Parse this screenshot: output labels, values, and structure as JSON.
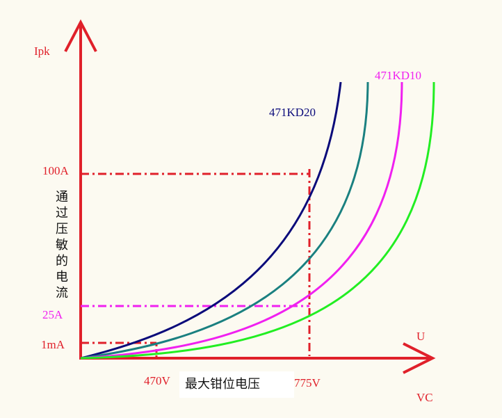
{
  "axes": {
    "y_label": "Ipk",
    "x_label_top": "U",
    "x_label_bottom": "VC",
    "y_title_chars": [
      "通",
      "过",
      "压",
      "敏",
      "的",
      "电",
      "流"
    ],
    "x_title": "最大钳位电压"
  },
  "y_markers": [
    {
      "label": "100A",
      "color": "#e0202a"
    },
    {
      "label": "25A",
      "color": "#f020f0"
    },
    {
      "label": "1mA",
      "color": "#e0202a"
    }
  ],
  "x_markers": [
    {
      "label": "470V",
      "color": "#e0202a"
    },
    {
      "label": "775V",
      "color": "#e0202a"
    }
  ],
  "curves": [
    {
      "label": "471KD20",
      "color": "#0a0a7a"
    },
    {
      "label": "",
      "color": "#1a8080"
    },
    {
      "label": "471KD10",
      "color": "#f020f0"
    },
    {
      "label": "",
      "color": "#22ee22"
    }
  ],
  "colors": {
    "axis": "#e0202a",
    "background": "#fcfaf1",
    "guide_red": "#e0202a",
    "guide_magenta": "#f020f0"
  }
}
